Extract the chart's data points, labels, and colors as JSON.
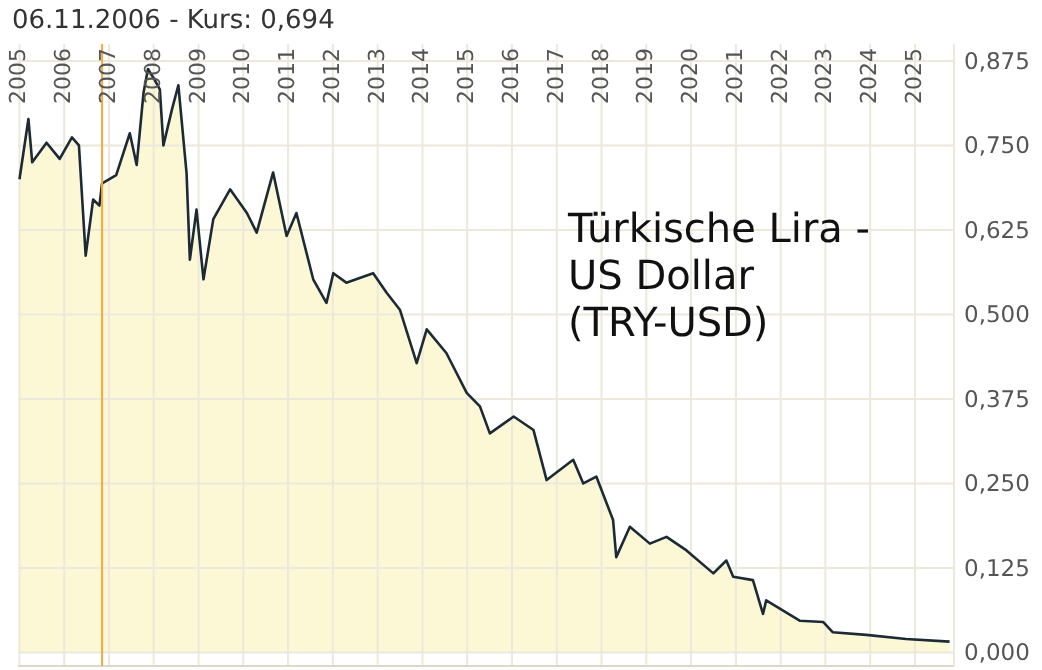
{
  "chart_data": {
    "type": "area",
    "title": "Türkische Lira - US Dollar (TRY-USD)",
    "x": [
      "2005-01-01",
      "2005-03-15",
      "2005-04-15",
      "2005-08-10",
      "2005-11-25",
      "2006-03-05",
      "2006-05-01",
      "2006-06-25",
      "2006-08-25",
      "2006-10-15",
      "2006-11-06",
      "2007-03-01",
      "2007-06-20",
      "2007-08-15",
      "2007-10-10",
      "2007-11-15",
      "2008-01-05",
      "2008-02-20",
      "2008-03-20",
      "2008-05-30",
      "2008-07-20",
      "2008-09-25",
      "2008-10-22",
      "2008-12-15",
      "2009-02-10",
      "2009-05-01",
      "2009-09-15",
      "2010-01-30",
      "2010-04-20",
      "2010-09-01",
      "2010-12-20",
      "2011-03-10",
      "2011-07-25",
      "2011-11-10",
      "2012-01-05",
      "2012-04-20",
      "2012-11-25",
      "2013-03-15",
      "2013-07-01",
      "2013-11-15",
      "2014-02-05",
      "2014-07-15",
      "2014-12-28",
      "2015-04-15",
      "2015-07-05",
      "2016-01-15",
      "2016-06-25",
      "2016-10-10",
      "2017-05-15",
      "2017-08-05",
      "2017-11-20",
      "2018-04-05",
      "2018-05-01",
      "2018-08-20",
      "2019-01-30",
      "2019-06-15",
      "2019-11-25",
      "2020-07-01",
      "2020-10-15",
      "2020-12-10",
      "2021-05-20",
      "2021-08-10",
      "2021-09-05",
      "2022-06-05",
      "2022-12-15",
      "2023-03-01",
      "2023-12-01",
      "2024-10-20",
      "2025-10-10"
    ],
    "series": [
      {
        "color": "#1b2a35",
        "values": [
          0.7,
          0.789,
          0.725,
          0.754,
          0.73,
          0.762,
          0.75,
          0.587,
          0.67,
          0.661,
          0.694,
          0.706,
          0.768,
          0.721,
          0.828,
          0.863,
          0.848,
          0.833,
          0.75,
          0.804,
          0.839,
          0.709,
          0.581,
          0.655,
          0.552,
          0.641,
          0.685,
          0.65,
          0.621,
          0.71,
          0.616,
          0.65,
          0.552,
          0.517,
          0.561,
          0.547,
          0.561,
          0.532,
          0.507,
          0.428,
          0.478,
          0.443,
          0.384,
          0.364,
          0.324,
          0.349,
          0.329,
          0.255,
          0.285,
          0.25,
          0.26,
          0.196,
          0.141,
          0.186,
          0.161,
          0.171,
          0.151,
          0.117,
          0.136,
          0.112,
          0.107,
          0.057,
          0.077,
          0.047,
          0.045,
          0.03,
          0.026,
          0.02,
          0.016
        ]
      }
    ],
    "xlim": [
      "2004-12-20",
      "2025-11-15"
    ],
    "xticks": [
      {
        "value": "2005-01-01",
        "label": "2005"
      },
      {
        "value": "2006-01-01",
        "label": "2006"
      },
      {
        "value": "2007-01-01",
        "label": "2007"
      },
      {
        "value": "2008-01-01",
        "label": "2008"
      },
      {
        "value": "2009-01-01",
        "label": "2009"
      },
      {
        "value": "2010-01-01",
        "label": "2010"
      },
      {
        "value": "2011-01-01",
        "label": "2011"
      },
      {
        "value": "2012-01-01",
        "label": "2012"
      },
      {
        "value": "2013-01-01",
        "label": "2013"
      },
      {
        "value": "2014-01-01",
        "label": "2014"
      },
      {
        "value": "2015-01-01",
        "label": "2015"
      },
      {
        "value": "2016-01-01",
        "label": "2016"
      },
      {
        "value": "2017-01-01",
        "label": "2017"
      },
      {
        "value": "2018-01-01",
        "label": "2018"
      },
      {
        "value": "2019-01-01",
        "label": "2019"
      },
      {
        "value": "2020-01-01",
        "label": "2020"
      },
      {
        "value": "2021-01-01",
        "label": "2021"
      },
      {
        "value": "2022-01-01",
        "label": "2022"
      },
      {
        "value": "2023-01-01",
        "label": "2023"
      },
      {
        "value": "2024-01-01",
        "label": "2024"
      },
      {
        "value": "2025-01-01",
        "label": "2025"
      }
    ],
    "ylim": [
      -0.02,
      0.9
    ],
    "yticks": [
      {
        "value": 0,
        "label": "0,000"
      },
      {
        "value": 0.125,
        "label": "0,125"
      },
      {
        "value": 0.25,
        "label": "0,250"
      },
      {
        "value": 0.375,
        "label": "0,375"
      },
      {
        "value": 0.5,
        "label": "0,500"
      },
      {
        "value": 0.625,
        "label": "0,625"
      },
      {
        "value": 0.75,
        "label": "0,750"
      },
      {
        "value": 0.875,
        "label": "0,875"
      }
    ],
    "grid": true,
    "ref_lines": [
      {
        "axis": "x",
        "value": "2006-11-06",
        "label": "06.11.2006 - Kurs: 0,694",
        "color": "#f5a93a"
      }
    ]
  }
}
